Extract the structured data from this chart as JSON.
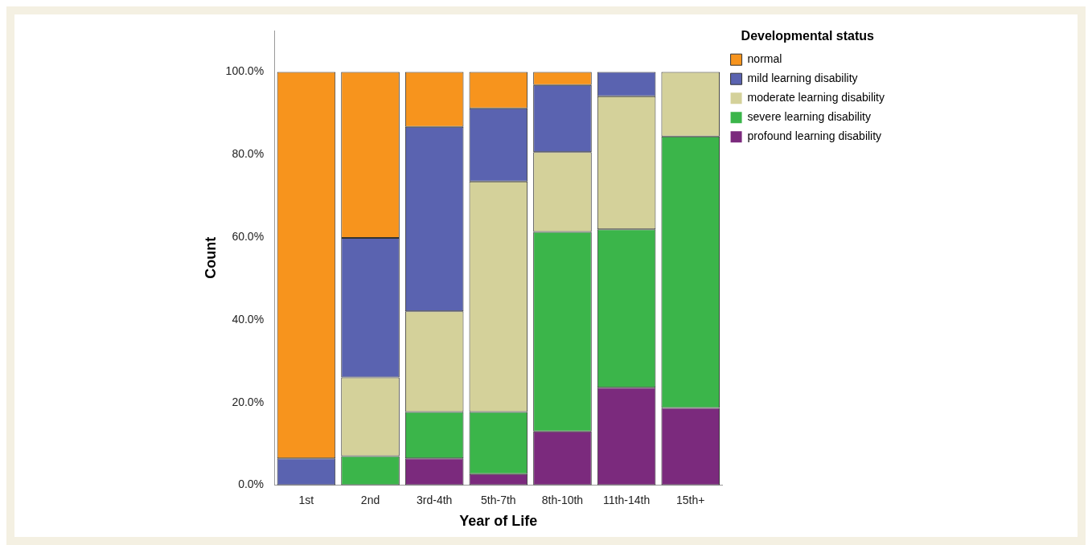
{
  "chart_data": {
    "type": "bar",
    "stacked": true,
    "xlabel": "Year of Life",
    "ylabel": "Count",
    "legend_title": "Developmental status",
    "legend": "top right",
    "grid": false,
    "categories": [
      "1st",
      "2nd",
      "3rd-4th",
      "5th-7th",
      "8th-10th",
      "11th-14th",
      "15th+"
    ],
    "ylim": [
      0,
      110
    ],
    "yticks": [
      {
        "value": 0,
        "label": "0.0%"
      },
      {
        "value": 20,
        "label": "20.0%"
      },
      {
        "value": 40,
        "label": "40.0%"
      },
      {
        "value": 60,
        "label": "60.0%"
      },
      {
        "value": 80,
        "label": "80.0%"
      },
      {
        "value": 100,
        "label": "100.0%"
      }
    ],
    "series": [
      {
        "name": "profound learning disability",
        "color": "#7b2a7d",
        "values": [
          0,
          0,
          6.5,
          2.7,
          13.0,
          23.6,
          18.7
        ]
      },
      {
        "name": "severe learning disability",
        "color": "#3bb54a",
        "values": [
          0,
          7.0,
          11.2,
          15.0,
          48.3,
          38.3,
          65.7
        ]
      },
      {
        "name": "moderate learning disability",
        "color": "#d4d19a",
        "values": [
          0,
          19.1,
          24.4,
          55.8,
          19.3,
          32.2,
          15.6
        ]
      },
      {
        "name": "mild learning disability",
        "color": "#5a63b0",
        "values": [
          6.5,
          33.7,
          44.6,
          17.7,
          16.2,
          5.9,
          0
        ]
      },
      {
        "name": "normal",
        "color": "#f7941d",
        "values": [
          93.5,
          40.2,
          13.3,
          8.8,
          3.2,
          0,
          0
        ]
      }
    ]
  }
}
